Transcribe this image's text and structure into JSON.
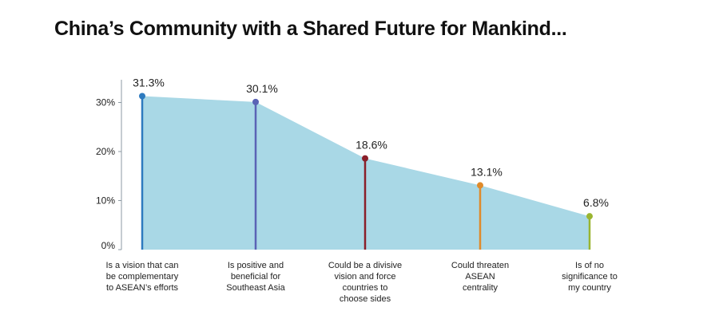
{
  "title": "China’s Community with a Shared Future for Mankind...",
  "chart_data": {
    "type": "area",
    "categories": [
      "Is a vision that can be complementary to ASEAN’s efforts",
      "Is positive and beneficial for Southeast Asia",
      "Could be a divisive vision and force countries to choose sides",
      "Could threaten ASEAN centrality",
      "Is of no significance to my country"
    ],
    "category_lines": [
      [
        "Is a vision that can",
        "be complementary",
        "to ASEAN’s efforts"
      ],
      [
        "Is positive and",
        "beneficial for",
        "Southeast Asia"
      ],
      [
        "Could be a divisive",
        "vision and force",
        "countries to",
        "choose sides"
      ],
      [
        "Could threaten",
        "ASEAN",
        "centrality"
      ],
      [
        "Is of no",
        "significance to",
        "my country"
      ]
    ],
    "values": [
      31.3,
      30.1,
      18.6,
      13.1,
      6.8
    ],
    "data_labels": [
      "31.3%",
      "30.1%",
      "18.6%",
      "13.1%",
      "6.8%"
    ],
    "ylim": [
      0,
      35
    ],
    "yticks": [
      0,
      10,
      20,
      30
    ],
    "ytick_labels": [
      "0%",
      "10%",
      "20%",
      "30%"
    ],
    "area_color": "#a9d8e6",
    "axis_color": "#8c9aa3",
    "point_colors": [
      "#2e7bbf",
      "#5a63b5",
      "#8a1f2a",
      "#e08a2a",
      "#9ab530"
    ],
    "grid": false,
    "legend": "none"
  }
}
